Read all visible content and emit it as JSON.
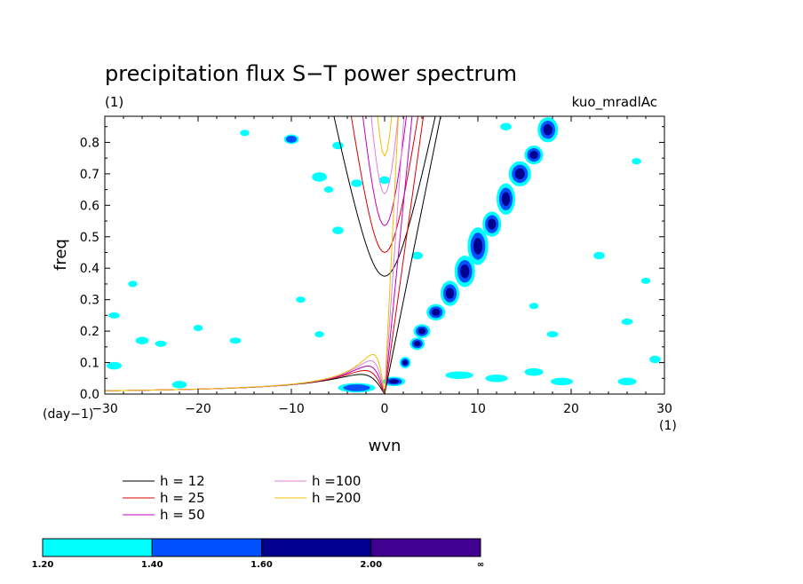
{
  "chart_data": {
    "type": "contour",
    "title": "precipitation flux S−T power spectrum",
    "unit_label": "(1)",
    "model_label": "kuo_mradlAc",
    "xlabel": "wvn",
    "ylabel": "freq",
    "x_unit": "(1)",
    "y_unit": "(day−1)",
    "xlim": [
      -30,
      30
    ],
    "ylim": [
      0,
      0.883
    ],
    "x_ticks": [
      -30,
      -20,
      -10,
      0,
      10,
      20,
      30
    ],
    "y_ticks": [
      0.0,
      0.1,
      0.2,
      0.3,
      0.4,
      0.5,
      0.6,
      0.7,
      0.8
    ],
    "x_tick_labels": [
      "−30",
      "−20",
      "−10",
      "0",
      "10",
      "20",
      "30"
    ],
    "y_tick_labels": [
      "0.0",
      "0.1",
      "0.2",
      "0.3",
      "0.4",
      "0.5",
      "0.6",
      "0.7",
      "0.8"
    ],
    "dispersion_curves": [
      {
        "label": "h = 12",
        "h": 12,
        "color": "#000000"
      },
      {
        "label": "h = 25",
        "h": 25,
        "color": "#dd0000"
      },
      {
        "label": "h = 50",
        "h": 50,
        "color": "#c000c0"
      },
      {
        "label": "h =100",
        "h": 100,
        "color": "#e080e0"
      },
      {
        "label": "h =200",
        "h": 200,
        "color": "#f0c000"
      }
    ],
    "colorbar": {
      "levels": [
        "1.20",
        "1.40",
        "1.60",
        "2.00",
        "∞"
      ],
      "colors": [
        "#00ffff",
        "#0050ff",
        "#000090",
        "#400090"
      ]
    },
    "power_blobs": [
      {
        "x": 1.0,
        "y": 0.04,
        "rx": 1.2,
        "ry": 0.015,
        "level": 3
      },
      {
        "x": 2.2,
        "y": 0.1,
        "rx": 0.6,
        "ry": 0.018,
        "level": 3
      },
      {
        "x": 3.5,
        "y": 0.16,
        "rx": 0.8,
        "ry": 0.02,
        "level": 3
      },
      {
        "x": 4.0,
        "y": 0.2,
        "rx": 0.9,
        "ry": 0.022,
        "level": 3
      },
      {
        "x": 5.5,
        "y": 0.26,
        "rx": 1.0,
        "ry": 0.026,
        "level": 3
      },
      {
        "x": 7.0,
        "y": 0.32,
        "rx": 1.0,
        "ry": 0.04,
        "level": 3
      },
      {
        "x": 8.6,
        "y": 0.39,
        "rx": 1.1,
        "ry": 0.05,
        "level": 3
      },
      {
        "x": 10.0,
        "y": 0.47,
        "rx": 1.1,
        "ry": 0.06,
        "level": 3
      },
      {
        "x": 11.5,
        "y": 0.54,
        "rx": 1.0,
        "ry": 0.04,
        "level": 3
      },
      {
        "x": 13.0,
        "y": 0.62,
        "rx": 1.0,
        "ry": 0.05,
        "level": 3
      },
      {
        "x": 14.5,
        "y": 0.7,
        "rx": 1.2,
        "ry": 0.04,
        "level": 3
      },
      {
        "x": 16.0,
        "y": 0.76,
        "rx": 1.0,
        "ry": 0.03,
        "level": 3
      },
      {
        "x": 17.5,
        "y": 0.84,
        "rx": 1.1,
        "ry": 0.04,
        "level": 3
      },
      {
        "x": -10.0,
        "y": 0.81,
        "rx": 0.8,
        "ry": 0.015,
        "level": 2
      },
      {
        "x": -3.0,
        "y": 0.02,
        "rx": 2.0,
        "ry": 0.015,
        "level": 2
      },
      {
        "x": -15.0,
        "y": 0.83,
        "rx": 0.5,
        "ry": 0.01,
        "level": 1
      },
      {
        "x": -5.0,
        "y": 0.79,
        "rx": 0.6,
        "ry": 0.012,
        "level": 1
      },
      {
        "x": -7.0,
        "y": 0.69,
        "rx": 0.8,
        "ry": 0.015,
        "level": 1
      },
      {
        "x": -3.0,
        "y": 0.67,
        "rx": 0.6,
        "ry": 0.012,
        "level": 1
      },
      {
        "x": 0.0,
        "y": 0.68,
        "rx": 0.6,
        "ry": 0.012,
        "level": 1
      },
      {
        "x": -6.0,
        "y": 0.65,
        "rx": 0.5,
        "ry": 0.01,
        "level": 1
      },
      {
        "x": -5.0,
        "y": 0.52,
        "rx": 0.6,
        "ry": 0.012,
        "level": 1
      },
      {
        "x": 3.5,
        "y": 0.44,
        "rx": 0.6,
        "ry": 0.012,
        "level": 1
      },
      {
        "x": -27.0,
        "y": 0.35,
        "rx": 0.5,
        "ry": 0.01,
        "level": 1
      },
      {
        "x": -29.0,
        "y": 0.25,
        "rx": 0.6,
        "ry": 0.01,
        "level": 1
      },
      {
        "x": -26.0,
        "y": 0.17,
        "rx": 0.7,
        "ry": 0.012,
        "level": 1
      },
      {
        "x": -24.0,
        "y": 0.16,
        "rx": 0.6,
        "ry": 0.01,
        "level": 1
      },
      {
        "x": -20.0,
        "y": 0.21,
        "rx": 0.5,
        "ry": 0.01,
        "level": 1
      },
      {
        "x": -16.0,
        "y": 0.17,
        "rx": 0.6,
        "ry": 0.01,
        "level": 1
      },
      {
        "x": -9.0,
        "y": 0.3,
        "rx": 0.5,
        "ry": 0.01,
        "level": 1
      },
      {
        "x": -7.0,
        "y": 0.19,
        "rx": 0.5,
        "ry": 0.01,
        "level": 1
      },
      {
        "x": -29.0,
        "y": 0.09,
        "rx": 0.8,
        "ry": 0.012,
        "level": 1
      },
      {
        "x": -22.0,
        "y": 0.03,
        "rx": 0.8,
        "ry": 0.012,
        "level": 1
      },
      {
        "x": 8.0,
        "y": 0.06,
        "rx": 1.5,
        "ry": 0.012,
        "level": 1
      },
      {
        "x": 12.0,
        "y": 0.05,
        "rx": 1.2,
        "ry": 0.012,
        "level": 1
      },
      {
        "x": 16.0,
        "y": 0.07,
        "rx": 1.0,
        "ry": 0.012,
        "level": 1
      },
      {
        "x": 19.0,
        "y": 0.04,
        "rx": 1.2,
        "ry": 0.012,
        "level": 1
      },
      {
        "x": 26.0,
        "y": 0.04,
        "rx": 1.0,
        "ry": 0.012,
        "level": 1
      },
      {
        "x": 18.0,
        "y": 0.19,
        "rx": 0.6,
        "ry": 0.01,
        "level": 1
      },
      {
        "x": 23.0,
        "y": 0.44,
        "rx": 0.6,
        "ry": 0.012,
        "level": 1
      },
      {
        "x": 26.0,
        "y": 0.23,
        "rx": 0.6,
        "ry": 0.01,
        "level": 1
      },
      {
        "x": 29.0,
        "y": 0.11,
        "rx": 0.6,
        "ry": 0.012,
        "level": 1
      },
      {
        "x": 13.0,
        "y": 0.85,
        "rx": 0.6,
        "ry": 0.012,
        "level": 1
      },
      {
        "x": 27.0,
        "y": 0.74,
        "rx": 0.5,
        "ry": 0.01,
        "level": 1
      },
      {
        "x": 16.0,
        "y": 0.28,
        "rx": 0.5,
        "ry": 0.01,
        "level": 1
      },
      {
        "x": 28.0,
        "y": 0.36,
        "rx": 0.5,
        "ry": 0.01,
        "level": 1
      }
    ]
  }
}
